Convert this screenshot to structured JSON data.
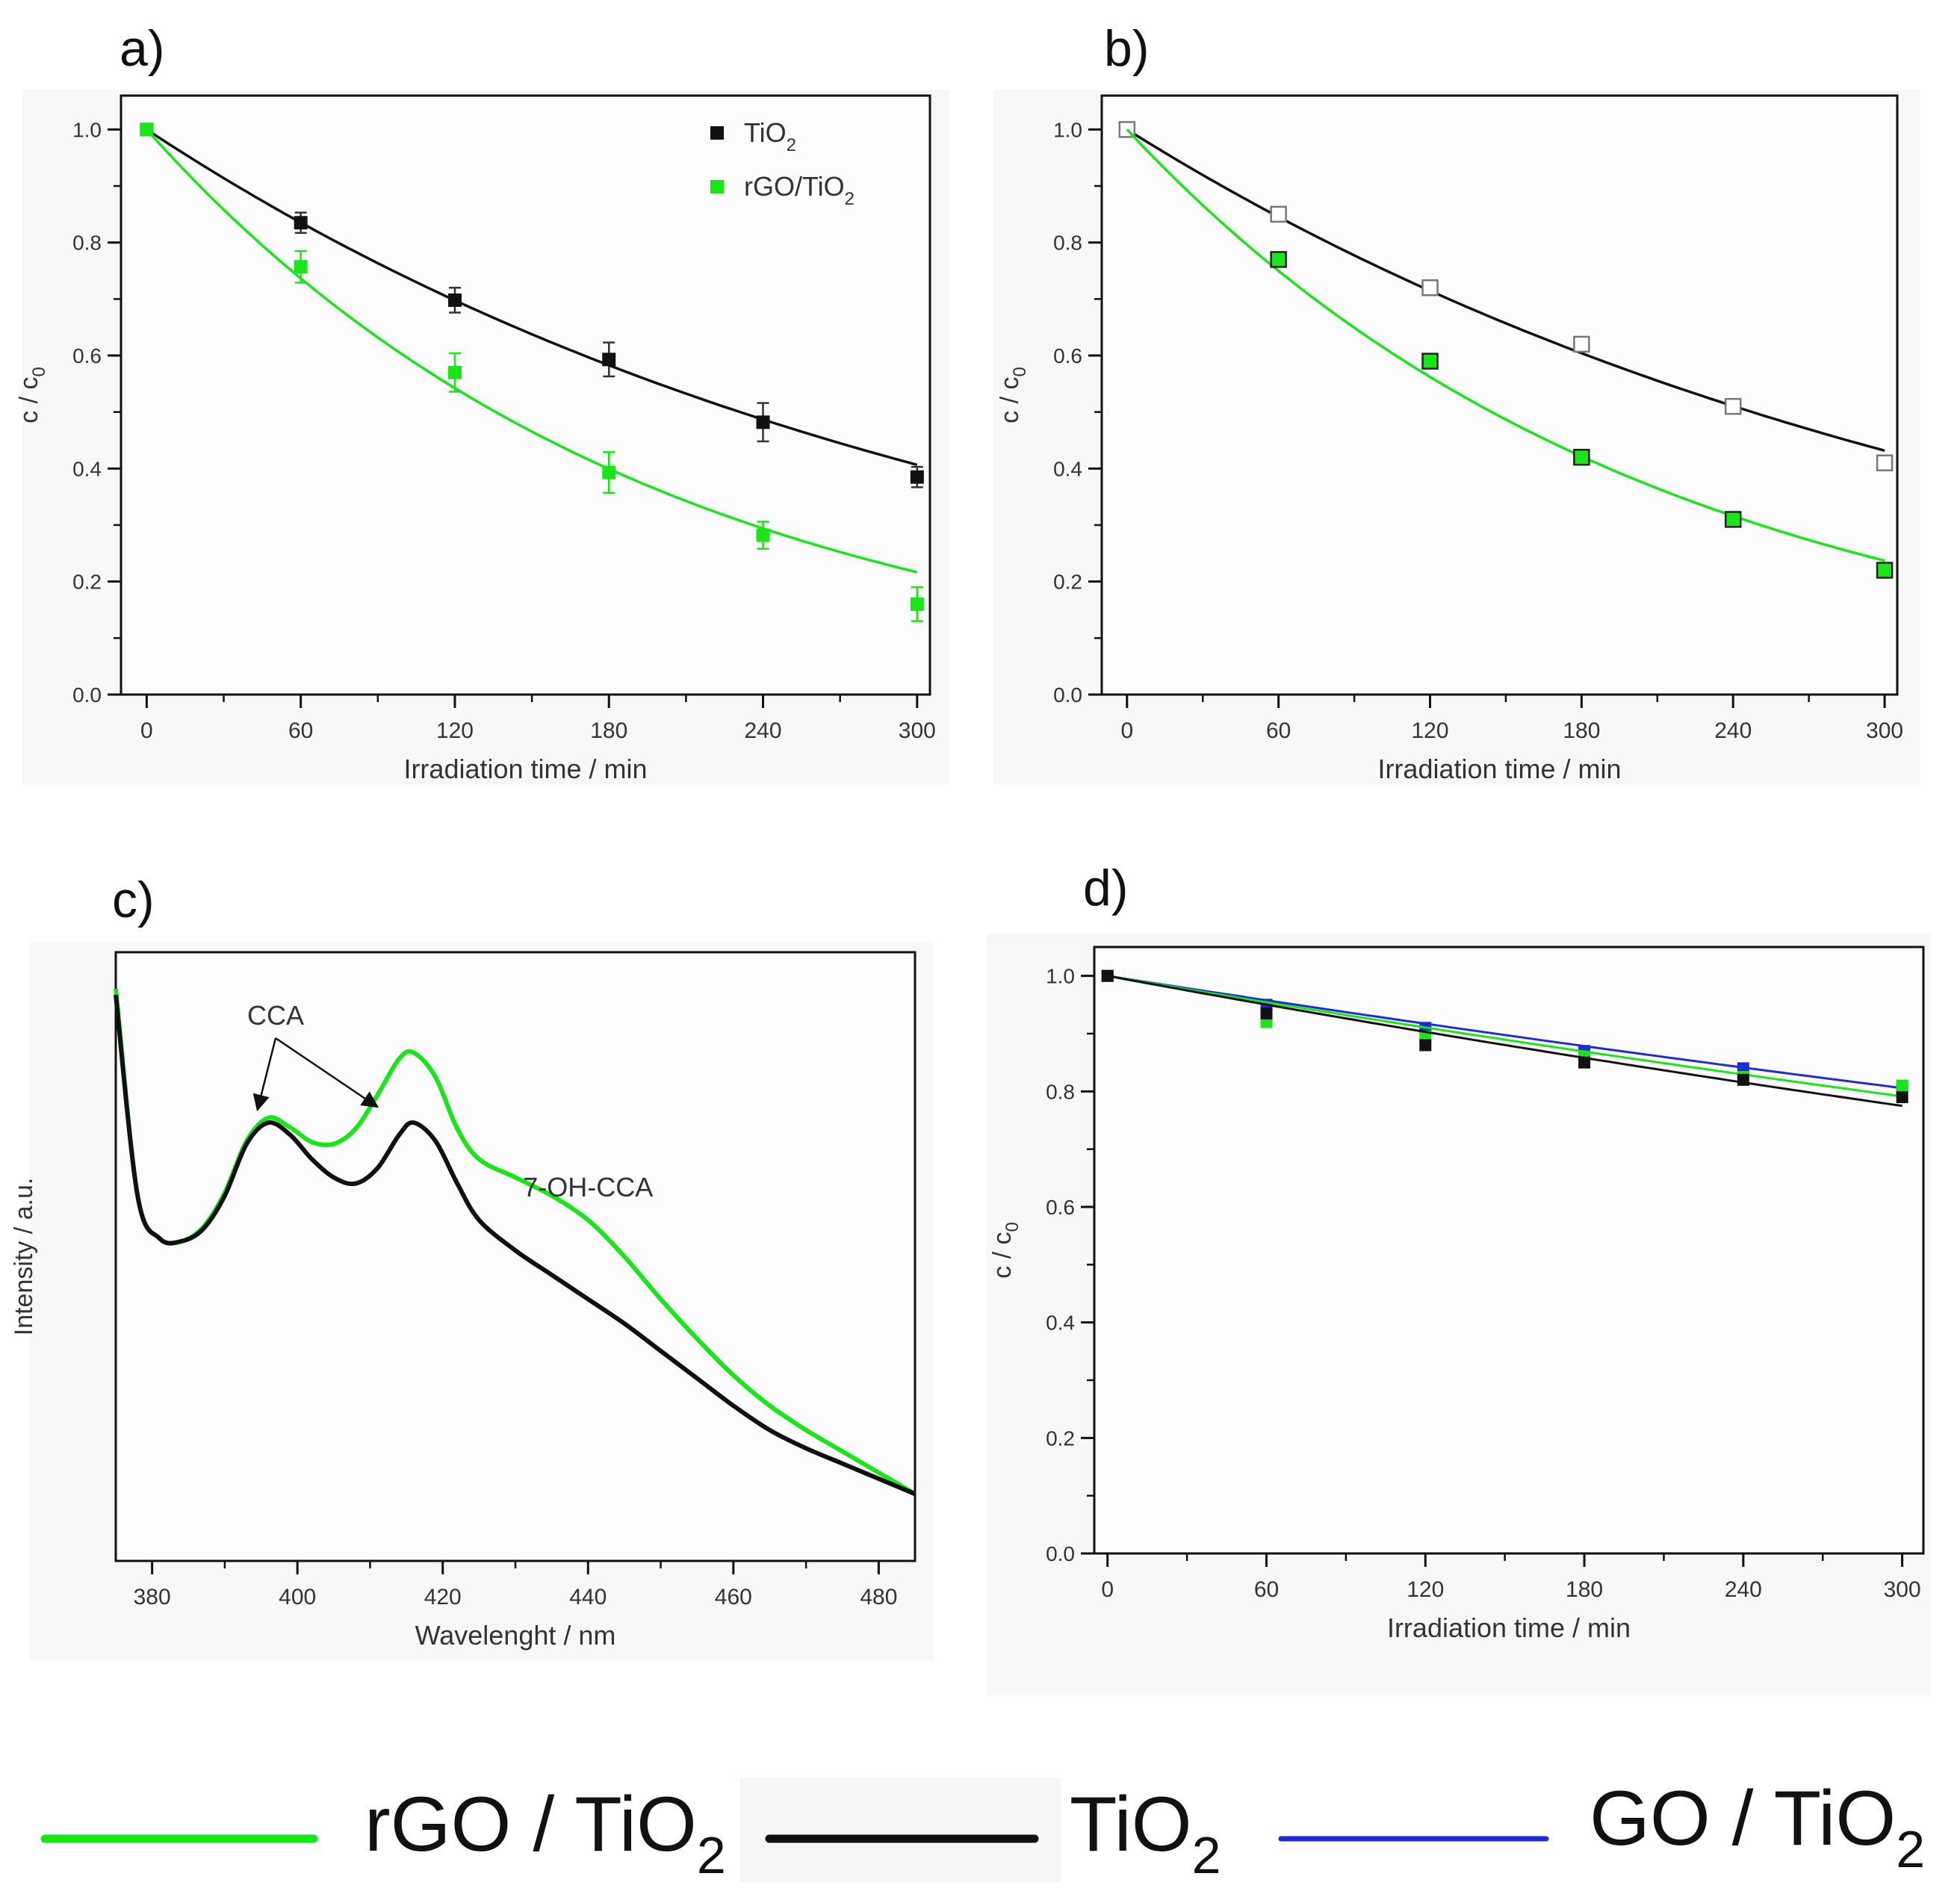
{
  "colors": {
    "black_series": "#111111",
    "green_series": "#19e619",
    "blue_series": "#1f2bd6",
    "frame": "#111111",
    "plot_bg": "#fbfbfb"
  },
  "legend": {
    "items": [
      {
        "text": "rGO / TiO",
        "sub": "2",
        "color": "#19e619"
      },
      {
        "text": "TiO",
        "sub": "2",
        "color": "#111111"
      },
      {
        "text": "GO / TiO",
        "sub": "2",
        "color": "#1f2bd6"
      }
    ]
  },
  "chart_data": [
    {
      "panel": "a)",
      "type": "scatter",
      "xlabel": "Irradiation time / min",
      "ylabel": "c / c",
      "ylabel_sub": "0",
      "xlim": [
        -10,
        305
      ],
      "ylim": [
        0.0,
        1.06
      ],
      "xticks": [
        0,
        60,
        120,
        180,
        240,
        300
      ],
      "yticks": [
        0.0,
        0.2,
        0.4,
        0.6,
        0.8,
        1.0
      ],
      "inset_legend": [
        {
          "text": "TiO",
          "sub": "2",
          "color": "#111111"
        },
        {
          "text": "rGO/TiO",
          "sub": "2",
          "color": "#19e619"
        }
      ],
      "series": [
        {
          "name": "TiO2",
          "color": "#111111",
          "marker": "filled",
          "x": [
            0,
            60,
            120,
            180,
            240,
            300
          ],
          "y": [
            1.0,
            0.835,
            0.698,
            0.593,
            0.482,
            0.385
          ],
          "err": [
            0,
            0.018,
            0.022,
            0.03,
            0.034,
            0.018
          ],
          "fit_k": 0.003
        },
        {
          "name": "rGO/TiO2",
          "color": "#19e619",
          "marker": "filled",
          "x": [
            0,
            60,
            120,
            180,
            240,
            300
          ],
          "y": [
            1.0,
            0.757,
            0.57,
            0.393,
            0.282,
            0.16
          ],
          "err": [
            0,
            0.028,
            0.034,
            0.036,
            0.024,
            0.03
          ],
          "fit_k": 0.0051
        }
      ]
    },
    {
      "panel": "b)",
      "type": "scatter",
      "xlabel": "Irradiation time / min",
      "ylabel": "c / c",
      "ylabel_sub": "0",
      "xlim": [
        -10,
        305
      ],
      "ylim": [
        0.0,
        1.06
      ],
      "xticks": [
        0,
        60,
        120,
        180,
        240,
        300
      ],
      "yticks": [
        0.0,
        0.2,
        0.4,
        0.6,
        0.8,
        1.0
      ],
      "series": [
        {
          "name": "TiO2",
          "color": "#111111",
          "marker": "open",
          "x": [
            0,
            60,
            120,
            180,
            240,
            300
          ],
          "y": [
            1.0,
            0.85,
            0.72,
            0.62,
            0.51,
            0.41
          ],
          "err": [],
          "fit_k": 0.0028
        },
        {
          "name": "rGO/TiO2",
          "color": "#19e619",
          "marker": "filled-outlined",
          "x": [
            60,
            120,
            180,
            240,
            300
          ],
          "y": [
            0.77,
            0.59,
            0.42,
            0.31,
            0.22
          ],
          "err": [],
          "fit_k": 0.0048
        }
      ]
    },
    {
      "panel": "c)",
      "type": "line",
      "xlabel": "Wavelenght / nm",
      "ylabel": "Intensity / a.u.",
      "xlim": [
        375,
        485
      ],
      "ylim": [
        0,
        1.0
      ],
      "xticks": [
        380,
        400,
        420,
        440,
        460,
        480
      ],
      "annotations": [
        "CCA",
        "7-OH-CCA"
      ],
      "series": [
        {
          "name": "TiO2",
          "color": "#111111",
          "x": [
            375,
            378,
            381,
            384,
            387,
            390,
            393,
            396,
            399,
            402,
            405,
            408,
            411,
            414,
            416,
            419,
            422,
            425,
            430,
            435,
            440,
            445,
            450,
            455,
            460,
            465,
            470,
            475,
            480,
            485
          ],
          "y": [
            0.93,
            0.6,
            0.53,
            0.525,
            0.545,
            0.6,
            0.685,
            0.72,
            0.7,
            0.66,
            0.63,
            0.62,
            0.645,
            0.7,
            0.72,
            0.69,
            0.62,
            0.56,
            0.51,
            0.47,
            0.43,
            0.39,
            0.345,
            0.3,
            0.255,
            0.215,
            0.185,
            0.16,
            0.135,
            0.11
          ]
        },
        {
          "name": "rGO/TiO2",
          "color": "#19e619",
          "x": [
            375,
            378,
            381,
            384,
            387,
            390,
            393,
            396,
            399,
            402,
            405,
            408,
            411,
            414,
            416,
            419,
            422,
            425,
            430,
            435,
            440,
            445,
            450,
            455,
            460,
            465,
            470,
            475,
            480,
            485
          ],
          "y": [
            0.94,
            0.6,
            0.53,
            0.525,
            0.548,
            0.605,
            0.69,
            0.728,
            0.712,
            0.688,
            0.685,
            0.71,
            0.765,
            0.825,
            0.835,
            0.795,
            0.71,
            0.66,
            0.63,
            0.6,
            0.56,
            0.5,
            0.43,
            0.365,
            0.305,
            0.255,
            0.215,
            0.18,
            0.145,
            0.11
          ]
        }
      ]
    },
    {
      "panel": "d)",
      "type": "scatter",
      "xlabel": "Irradiation time / min",
      "ylabel": "c / c",
      "ylabel_sub": "0",
      "xlim": [
        -5,
        308
      ],
      "ylim": [
        0.0,
        1.05
      ],
      "xticks": [
        0,
        60,
        120,
        180,
        240,
        300
      ],
      "yticks": [
        0.0,
        0.2,
        0.4,
        0.6,
        0.8,
        1.0
      ],
      "series": [
        {
          "name": "GO/TiO2",
          "color": "#1f2bd6",
          "marker": "filled",
          "x": [
            0,
            60,
            120,
            180,
            240,
            300
          ],
          "y": [
            1.0,
            0.95,
            0.91,
            0.87,
            0.84,
            0.805
          ],
          "err": [],
          "fit_k": 0.00072
        },
        {
          "name": "rGO/TiO2",
          "color": "#19e619",
          "marker": "filled",
          "x": [
            0,
            60,
            120,
            180,
            240,
            300
          ],
          "y": [
            1.0,
            0.92,
            0.895,
            0.86,
            0.825,
            0.81
          ],
          "err": [],
          "fit_k": 0.00078
        },
        {
          "name": "TiO2",
          "color": "#111111",
          "marker": "filled",
          "x": [
            0,
            60,
            120,
            180,
            240,
            300
          ],
          "y": [
            1.0,
            0.935,
            0.88,
            0.85,
            0.82,
            0.79
          ],
          "err": [],
          "fit_k": 0.00085
        }
      ]
    }
  ]
}
